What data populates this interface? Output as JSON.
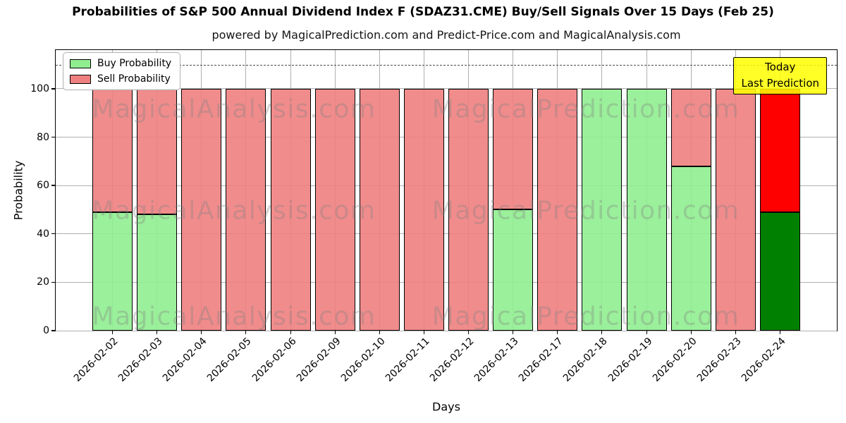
{
  "title": "Probabilities of S&P 500 Annual Dividend Index F (SDAZ31.CME) Buy/Sell Signals Over 15 Days (Feb 25)",
  "subtitle": "powered by MagicalPrediction.com and Predict-Price.com and MagicalAnalysis.com",
  "annotation": {
    "line1": "Today",
    "line2": "Last Prediction",
    "bg_color": "#ffff00"
  },
  "watermarks": {
    "left": "MagicalAnalysis.com",
    "right": "MagicalPrediction.com"
  },
  "chart_data": {
    "type": "bar",
    "stacked": true,
    "title": "Probabilities of S&P 500 Annual Dividend Index F (SDAZ31.CME) Buy/Sell Signals Over 15 Days (Feb 25)",
    "xlabel": "Days",
    "ylabel": "Probability",
    "ylim": [
      0,
      116
    ],
    "yticks": [
      0,
      20,
      40,
      60,
      80,
      100
    ],
    "dashed_line_y": 110,
    "grid": true,
    "legend_position": "upper left",
    "categories": [
      "2026-02-02",
      "2026-02-03",
      "2026-02-04",
      "2026-02-05",
      "2026-02-06",
      "2026-02-09",
      "2026-02-10",
      "2026-02-11",
      "2026-02-12",
      "2026-02-13",
      "2026-02-17",
      "2026-02-18",
      "2026-02-19",
      "2026-02-20",
      "2026-02-23",
      "2026-02-24"
    ],
    "series": [
      {
        "name": "Buy Probability",
        "color": "#90ee90",
        "values": [
          49,
          48,
          0,
          0,
          0,
          0,
          0,
          0,
          0,
          50,
          0,
          100,
          100,
          68,
          0,
          49
        ]
      },
      {
        "name": "Sell Probability",
        "color": "#f08080",
        "values": [
          51,
          52,
          100,
          100,
          100,
          100,
          100,
          100,
          100,
          50,
          100,
          0,
          0,
          32,
          100,
          51
        ]
      }
    ],
    "today": {
      "index": 15,
      "buy_color": "#008000",
      "sell_color": "#ff0000"
    }
  }
}
